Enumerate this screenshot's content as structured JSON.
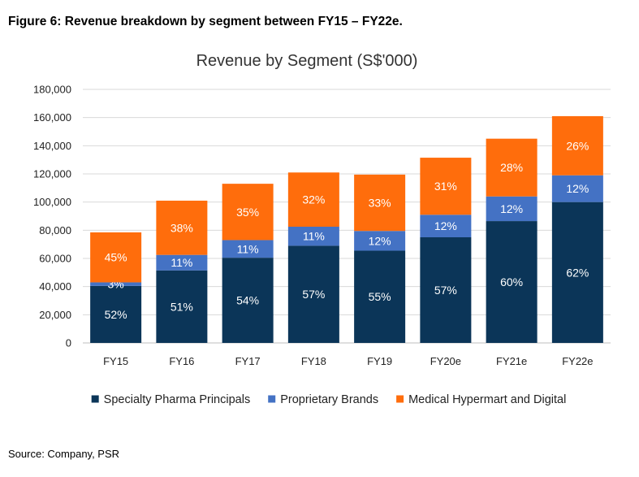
{
  "figure_caption": "Figure 6: Revenue breakdown by segment between FY15 – FY22e.",
  "source_note": "Source: Company, PSR",
  "chart_data": {
    "type": "bar",
    "stacked": true,
    "title": "Revenue by Segment (S$'000)",
    "xlabel": "",
    "ylabel": "",
    "categories": [
      "FY15",
      "FY16",
      "FY17",
      "FY18",
      "FY19",
      "FY20e",
      "FY21e",
      "FY22e"
    ],
    "ylim": [
      0,
      180000
    ],
    "yticks": [
      0,
      20000,
      40000,
      60000,
      80000,
      100000,
      120000,
      140000,
      160000,
      180000
    ],
    "ytick_labels": [
      "0",
      "20,000",
      "40,000",
      "60,000",
      "80,000",
      "100,000",
      "120,000",
      "140,000",
      "160,000",
      "180,000"
    ],
    "grid": true,
    "legend_position": "bottom",
    "series": [
      {
        "name": "Specialty Pharma Principals",
        "color": "#0b3558",
        "values": [
          40500,
          51500,
          60500,
          69000,
          65500,
          75000,
          86500,
          100000
        ],
        "labels": [
          "52%",
          "51%",
          "54%",
          "57%",
          "55%",
          "57%",
          "60%",
          "62%"
        ]
      },
      {
        "name": "Proprietary Brands",
        "color": "#4472c4",
        "values": [
          2500,
          11000,
          12500,
          13500,
          14000,
          16000,
          17500,
          19000
        ],
        "labels": [
          "3%",
          "11%",
          "11%",
          "11%",
          "12%",
          "12%",
          "12%",
          "12%"
        ]
      },
      {
        "name": "Medical Hypermart and Digital",
        "color": "#ff6d0c",
        "values": [
          35500,
          38500,
          40000,
          38500,
          40000,
          40500,
          41000,
          42000
        ],
        "labels": [
          "45%",
          "38%",
          "35%",
          "32%",
          "33%",
          "31%",
          "28%",
          "26%"
        ]
      }
    ]
  }
}
